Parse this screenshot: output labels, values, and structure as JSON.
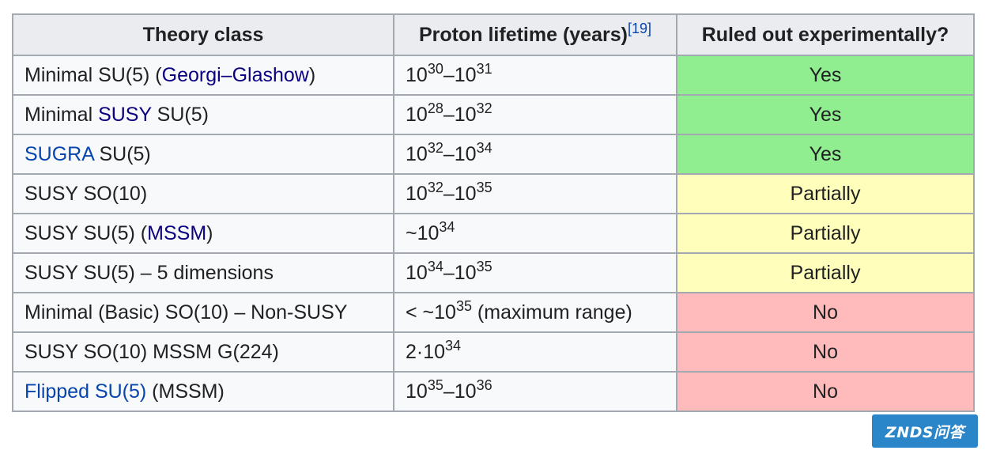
{
  "table": {
    "headers": {
      "theory": "Theory class",
      "lifetime": "Proton lifetime (years)",
      "lifetime_ref": "[19]",
      "ruled_out": "Ruled out experimentally?"
    },
    "rows": [
      {
        "theory": {
          "pre": "Minimal SU(5) (",
          "link": "Georgi–Glashow",
          "post": ")"
        },
        "lifetime": {
          "pre": "10",
          "sup1": "30",
          "mid": "–10",
          "sup2": "31",
          "post": ""
        },
        "status": "Yes"
      },
      {
        "theory": {
          "pre": "Minimal ",
          "link": "SUSY",
          "post": " SU(5)"
        },
        "lifetime": {
          "pre": "10",
          "sup1": "28",
          "mid": "–10",
          "sup2": "32",
          "post": ""
        },
        "status": "Yes"
      },
      {
        "theory": {
          "pre": "",
          "link": "SUGRA",
          "post": " SU(5)"
        },
        "lifetime": {
          "pre": "10",
          "sup1": "32",
          "mid": "–10",
          "sup2": "34",
          "post": ""
        },
        "status": "Yes"
      },
      {
        "theory": {
          "pre": "SUSY SO(10)",
          "link": "",
          "post": ""
        },
        "lifetime": {
          "pre": "10",
          "sup1": "32",
          "mid": "–10",
          "sup2": "35",
          "post": ""
        },
        "status": "Partially"
      },
      {
        "theory": {
          "pre": "SUSY SU(5) (",
          "link": "MSSM",
          "post": ")"
        },
        "lifetime": {
          "pre": "~10",
          "sup1": "34",
          "mid": "",
          "sup2": "",
          "post": ""
        },
        "status": "Partially"
      },
      {
        "theory": {
          "pre": "SUSY SU(5) – 5 dimensions",
          "link": "",
          "post": ""
        },
        "lifetime": {
          "pre": "10",
          "sup1": "34",
          "mid": "–10",
          "sup2": "35",
          "post": ""
        },
        "status": "Partially"
      },
      {
        "theory": {
          "pre": "Minimal (Basic) SO(10) – Non-SUSY",
          "link": "",
          "post": ""
        },
        "lifetime": {
          "pre": "< ~10",
          "sup1": "35",
          "mid": " (maximum range)",
          "sup2": "",
          "post": ""
        },
        "status": "No"
      },
      {
        "theory": {
          "pre": "SUSY SO(10) MSSM G(224)",
          "link": "",
          "post": ""
        },
        "lifetime": {
          "pre": "2·10",
          "sup1": "34",
          "mid": "",
          "sup2": "",
          "post": ""
        },
        "status": "No"
      },
      {
        "theory": {
          "pre": "",
          "link": "Flipped SU(5)",
          "post": " (MSSM)"
        },
        "lifetime": {
          "pre": "10",
          "sup1": "35",
          "mid": "–10",
          "sup2": "36",
          "post": ""
        },
        "status": "No"
      }
    ]
  },
  "colors": {
    "yes": "#90ee90",
    "partial": "#ffffbb",
    "no": "#ffbbbb",
    "link": "#0645ad",
    "visited_link": "#0b0080",
    "header_bg": "#eaecf0",
    "cell_bg": "#f8f9fa",
    "border": "#a2a9b1"
  },
  "watermark": {
    "text": "ZNDS问答"
  }
}
